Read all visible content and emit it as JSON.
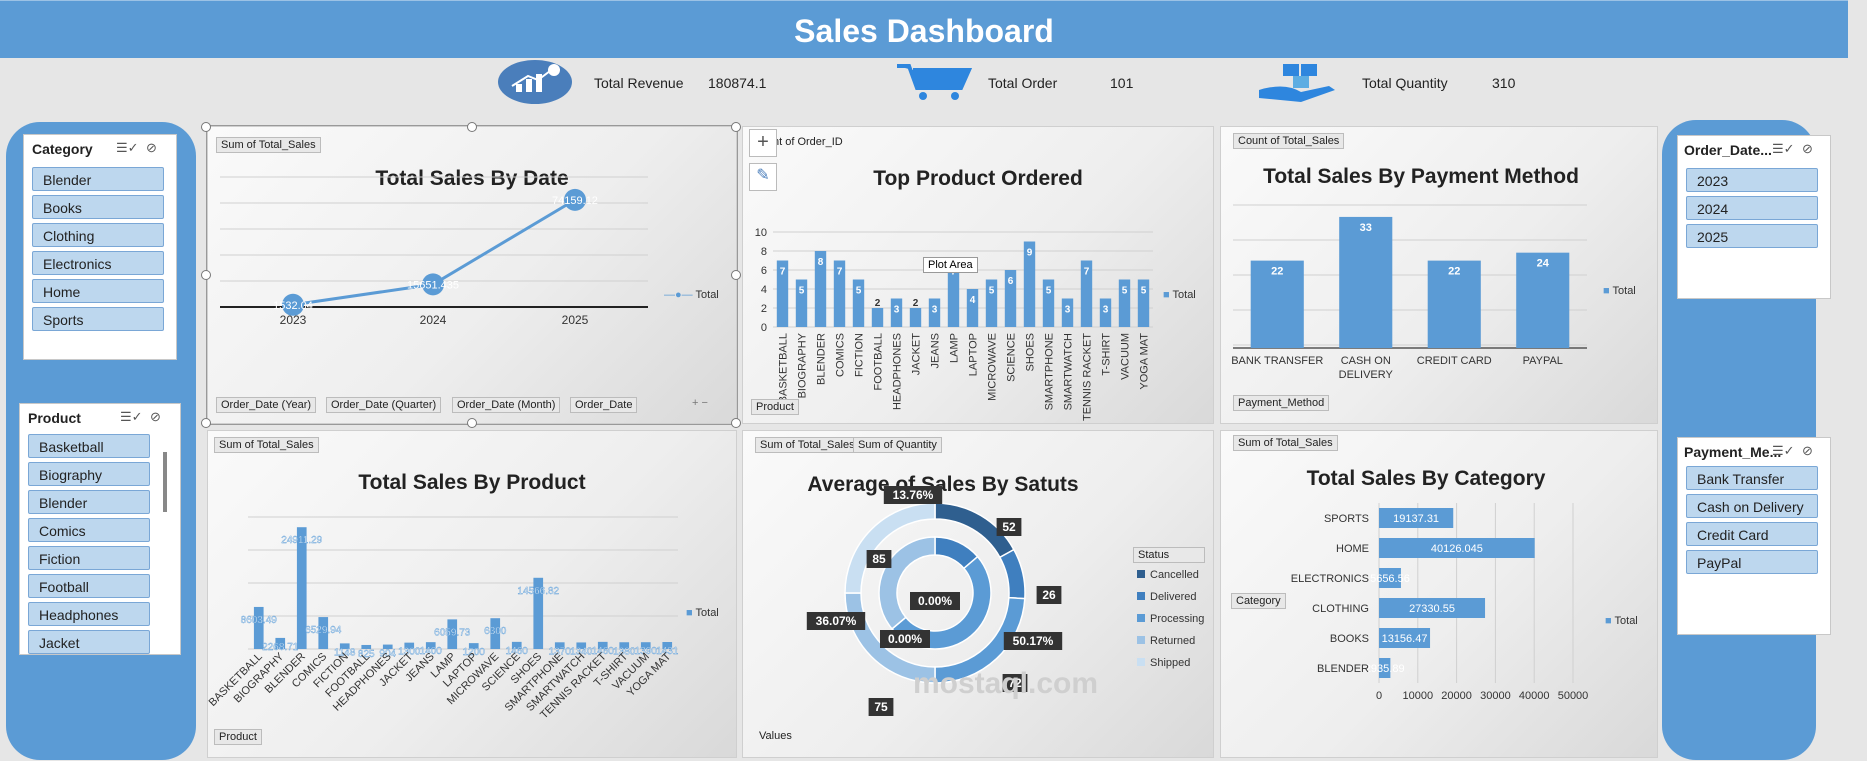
{
  "header": {
    "title": "Sales Dashboard"
  },
  "kpis": [
    {
      "label": "Total Revenue",
      "value": "180874.1",
      "icon": "revenue-chart-icon"
    },
    {
      "label": "Total Order",
      "value": "101",
      "icon": "shopping-cart-icon"
    },
    {
      "label": "Total Quantity",
      "value": "310",
      "icon": "boxes-hand-icon"
    }
  ],
  "slicers": {
    "category": {
      "title": "Category",
      "items": [
        "Blender",
        "Books",
        "Clothing",
        "Electronics",
        "Home",
        "Sports"
      ]
    },
    "product": {
      "title": "Product",
      "items": [
        "Basketball",
        "Biography",
        "Blender",
        "Comics",
        "Fiction",
        "Football",
        "Headphones",
        "Jacket"
      ]
    },
    "order_date": {
      "title": "Order_Date...",
      "items": [
        "2023",
        "2024",
        "2025"
      ]
    },
    "payment": {
      "title": "Payment_Me...",
      "items": [
        "Bank Transfer",
        "Cash on Delivery",
        "Credit Card",
        "PayPal"
      ]
    }
  },
  "colors": {
    "accent": "#5b9bd5",
    "header": "#5b9bd5",
    "bar": "#5b9bd5"
  },
  "panels": {
    "sales_by_date": {
      "field_top": "Sum of Total_Sales",
      "filters": [
        "Order_Date (Year)",
        "Order_Date (Quarter)",
        "Order_Date (Month)",
        "Order_Date"
      ],
      "legend": "Total"
    },
    "top_product": {
      "field_top": "nt of Order_ID",
      "axis_field": "Product",
      "legend": "Total",
      "tooltip": "Plot Area"
    },
    "payment_method": {
      "field_top": "Count of Total_Sales",
      "axis_field": "Payment_Method",
      "legend": "Total"
    },
    "sales_by_product": {
      "field_top": "Sum of Total_Sales",
      "axis_field": "Product",
      "legend": "Total"
    },
    "sales_status": {
      "field_top_1": "Sum of Total_Sales",
      "field_top_2": "Sum of Quantity",
      "values_label": "Values",
      "legend_title": "Status"
    },
    "sales_by_category": {
      "field_top": "Sum of Total_Sales",
      "axis_field": "Category",
      "legend": "Total"
    }
  },
  "watermark": "mostaql.com",
  "chart_data": [
    {
      "id": "sales_by_date",
      "type": "line",
      "title": "Total Sales By Date",
      "x": [
        "2023",
        "2024",
        "2025"
      ],
      "series": [
        {
          "name": "Total",
          "values": [
            1532.04,
            15651.435,
            74159.12
          ]
        }
      ],
      "data_labels": [
        "1532.04",
        "15651.435",
        "74159.12"
      ],
      "ylim": [
        0,
        90000
      ],
      "grid": true,
      "legend": "right"
    },
    {
      "id": "top_product",
      "type": "bar",
      "title": "Top Product Ordered",
      "categories": [
        "BASKETBALL",
        "BIOGRAPHY",
        "BLENDER",
        "COMICS",
        "FICTION",
        "FOOTBALL",
        "HEADPHONES",
        "JACKET",
        "JEANS",
        "LAMP",
        "LAPTOP",
        "MICROWAVE",
        "SCIENCE",
        "SHOES",
        "SMARTPHONE",
        "SMARTWATCH",
        "TENNIS RACKET",
        "T-SHIRT",
        "VACUUM",
        "YOGA MAT"
      ],
      "series": [
        {
          "name": "Total",
          "values": [
            7,
            5,
            8,
            7,
            5,
            2,
            3,
            2,
            3,
            7,
            4,
            5,
            6,
            9,
            5,
            3,
            7,
            3,
            5,
            5
          ]
        }
      ],
      "yticks": [
        "0",
        "2",
        "4",
        "6",
        "8",
        "10"
      ],
      "ylim": [
        0,
        10
      ],
      "grid": true,
      "legend": "right"
    },
    {
      "id": "payment_method",
      "type": "bar",
      "title": "Total Sales By Payment Method",
      "categories": [
        "BANK TRANSFER",
        "CASH ON DELIVERY",
        "CREDIT CARD",
        "PAYPAL"
      ],
      "series": [
        {
          "name": "Total",
          "values": [
            22,
            33,
            22,
            24
          ]
        }
      ],
      "ylim": [
        0,
        36
      ],
      "grid": true,
      "legend": "right"
    },
    {
      "id": "sales_by_product",
      "type": "bar",
      "title": "Total Sales By Product",
      "categories": [
        "BASKETBALL",
        "BIOGRAPHY",
        "BLENDER",
        "COMICS",
        "FICTION",
        "FOOTBALL",
        "HEADPHONES",
        "JACKET",
        "JEANS",
        "LAMP",
        "LAPTOP",
        "MICROWAVE",
        "SCIENCE",
        "SHOES",
        "SMARTPHONE",
        "SMARTWATCH",
        "TENNIS RACKET",
        "T-SHIRT",
        "VACUUM",
        "YOGA MAT"
      ],
      "series": [
        {
          "name": "Total",
          "values": [
            8603.49,
            2268.71,
            24911.29,
            6529.94,
            1148,
            825,
            904,
            1300,
            1400,
            6059.73,
            1200,
            6300,
            1460,
            14566.82,
            1370,
            1340,
            1460,
            1380,
            1390,
            1431
          ]
        }
      ],
      "data_labels": [
        "8603.49",
        "2268.71",
        "24911.29",
        "6529.94",
        "1148",
        "825",
        "904",
        "1300",
        "1400",
        "6059.73",
        "1200",
        "6300",
        "1460",
        "14566.82",
        "1370",
        "1340",
        "1460",
        "1380",
        "1390",
        "1431"
      ],
      "ylim": [
        0,
        27000
      ],
      "grid": true,
      "legend": "right"
    },
    {
      "id": "sales_status",
      "type": "pie",
      "title": "Average of Sales By Satuts",
      "categories": [
        "Cancelled",
        "Delivered",
        "Processing",
        "Returned",
        "Shipped"
      ],
      "outer_ring": {
        "labels": [
          "52",
          "26",
          "72",
          "75",
          "85"
        ]
      },
      "inner_ring": {
        "labels": [
          "13.76%",
          "50.17%",
          "36.07%",
          "0.00%",
          "0.00%"
        ]
      },
      "legend": "right"
    },
    {
      "id": "sales_by_category",
      "type": "bar",
      "orientation": "horizontal",
      "title": "Total Sales By Category",
      "categories": [
        "SPORTS",
        "HOME",
        "ELECTRONICS",
        "CLOTHING",
        "BOOKS",
        "BLENDER"
      ],
      "series": [
        {
          "name": "Total",
          "values": [
            19137.31,
            40126.045,
            5656.56,
            27330.55,
            13156.47,
            2935.89
          ]
        }
      ],
      "data_labels": [
        "19137.31",
        "40126.045",
        "5656.56",
        "27330.55",
        "13156.47",
        "2935.89"
      ],
      "xticks": [
        "0",
        "10000",
        "20000",
        "30000",
        "40000",
        "50000"
      ],
      "xlim": [
        0,
        50000
      ],
      "grid": true,
      "legend": "right"
    }
  ]
}
